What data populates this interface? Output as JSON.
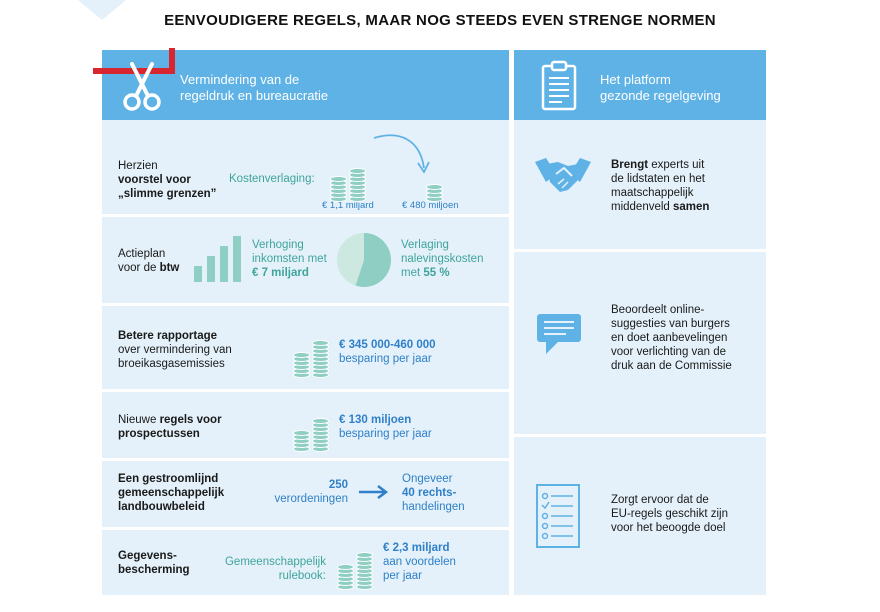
{
  "title": "EENVOUDIGERE REGELS, MAAR NOG STEEDS EVEN STRENGE NORMEN",
  "colors": {
    "panel": "#e4f1fa",
    "header": "#5fb2e6",
    "teal": "#3fa49b",
    "blue": "#2f80c8",
    "brand_red": "#d7262f"
  },
  "left": {
    "header_icon": "scissors-icon",
    "header_title_1": "Vermindering van de",
    "header_title_2": "regeldruk en bureaucratie",
    "rows": [
      {
        "label_1": "Herzien",
        "label_2": "voorstel voor",
        "label_3": "„slimme grenzen”",
        "kosten": "Kostenverlaging:",
        "before": "€ 1,1 miljard",
        "after": "€ 480 miljoen"
      },
      {
        "label_1": "Actieplan",
        "label_2a": "voor de ",
        "label_2b": "btw",
        "inc_1": "Verhoging",
        "inc_2": "inkomsten met",
        "inc_3": "€ 7 miljard",
        "red_1": "Verlaging",
        "red_2": "nalevingskosten",
        "red_3a": "met ",
        "red_3b": "55 %",
        "pie_fraction": 0.55
      },
      {
        "label_1": "Betere rapportage",
        "label_2": "over vermindering van",
        "label_3": "broeikasgasemissies",
        "value": "€ 345 000-460 000",
        "value_sub": "besparing per jaar"
      },
      {
        "label_1a": "Nieuwe ",
        "label_1b": "regels voor",
        "label_2": "prospectussen",
        "value": "€ 130 miljoen",
        "value_sub": "besparing per jaar"
      },
      {
        "label_1": "Een gestroomlijnd",
        "label_2": "gemeenschappelijk",
        "label_3": "landbouwbeleid",
        "from_1": "250",
        "from_2": "verordeningen",
        "to_1": "Ongeveer",
        "to_2": "40 rechts-",
        "to_3": "handelingen"
      },
      {
        "label_1": "Gegevens-",
        "label_2": "bescherming",
        "rule_1": "Gemeenschappelijk",
        "rule_2": "rulebook:",
        "value": "€ 2,3 miljard",
        "value_2": "aan voordelen",
        "value_3": "per jaar"
      }
    ]
  },
  "right": {
    "header_icon": "clipboard-icon",
    "header_title_1": "Het platform",
    "header_title_2": "gezonde regelgeving",
    "items": [
      {
        "icon": "handshake-icon",
        "a": "Brengt",
        "b": " experts uit",
        "c": "de lidstaten en het",
        "d": "maatschappelijk",
        "e": "middenveld ",
        "f": "samen"
      },
      {
        "icon": "chat-icon",
        "l1": "Beoordeelt online-",
        "l2": "suggesties van burgers",
        "l3": "en doet aanbevelingen",
        "l4": "voor verlichting van de",
        "l5": "druk aan de Commissie"
      },
      {
        "icon": "checklist-icon",
        "l1": "Zorgt ervoor dat de",
        "l2": "EU-regels geschikt zijn",
        "l3": "voor het beoogde doel"
      }
    ]
  }
}
